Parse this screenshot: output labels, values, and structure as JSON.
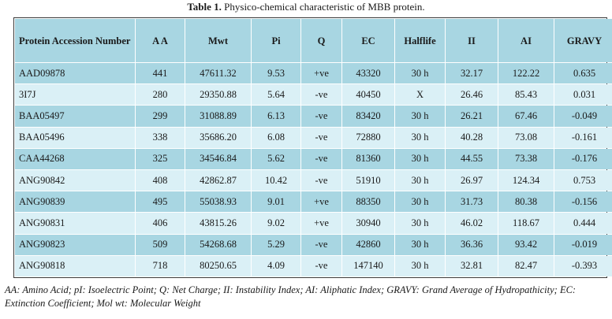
{
  "caption": {
    "label": "Table 1.",
    "text": " Physico-chemical characteristic of MBB protein."
  },
  "table": {
    "headers": [
      "Protein Accession Number",
      "A A",
      "Mwt",
      "Pi",
      "Q",
      "EC",
      "Halflife",
      "II",
      "AI",
      "GRAVY"
    ],
    "rows": [
      [
        "AAD09878",
        "441",
        "47611.32",
        "9.53",
        "+ve",
        "43320",
        "30 h",
        "32.17",
        "122.22",
        "0.635"
      ],
      [
        "3I7J",
        "280",
        "29350.88",
        "5.64",
        "-ve",
        "40450",
        "X",
        "26.46",
        "85.43",
        "0.031"
      ],
      [
        "BAA05497",
        "299",
        "31088.89",
        "6.13",
        "-ve",
        "83420",
        "30 h",
        "26.21",
        "67.46",
        "-0.049"
      ],
      [
        "BAA05496",
        "338",
        "35686.20",
        "6.08",
        "-ve",
        "72880",
        "30 h",
        "40.28",
        "73.08",
        "-0.161"
      ],
      [
        "CAA44268",
        "325",
        "34546.84",
        "5.62",
        "-ve",
        "81360",
        "30 h",
        "44.55",
        "73.38",
        "-0.176"
      ],
      [
        "ANG90842",
        "408",
        "42862.87",
        "10.42",
        "-ve",
        "51910",
        "30 h",
        "26.97",
        "124.34",
        "0.753"
      ],
      [
        "ANG90839",
        "495",
        "55038.93",
        "9.01",
        "+ve",
        "88350",
        "30 h",
        "31.73",
        "80.38",
        "-0.156"
      ],
      [
        "ANG90831",
        "406",
        "43815.26",
        "9.02",
        "+ve",
        "30940",
        "30 h",
        "46.02",
        "118.67",
        "0.444"
      ],
      [
        "ANG90823",
        "509",
        "54268.68",
        "5.29",
        "-ve",
        "42860",
        "30 h",
        "36.36",
        "93.42",
        "-0.019"
      ],
      [
        "ANG90818",
        "718",
        "80250.65",
        "4.09",
        "-ve",
        "147140",
        "30 h",
        "32.81",
        "82.47",
        "-0.393"
      ]
    ]
  },
  "footnote": "AA: Amino Acid; pI: Isoelectric Point; Q: Net Charge; II: Instability Index; AI: Aliphatic Index; GRAVY: Grand Average of Hydropathicity; EC: Extinction Coefficient; Mol wt: Molecular Weight",
  "colors": {
    "header_bg": "#a8d6e2",
    "row_dark": "#a8d6e2",
    "row_light": "#daf0f6"
  }
}
